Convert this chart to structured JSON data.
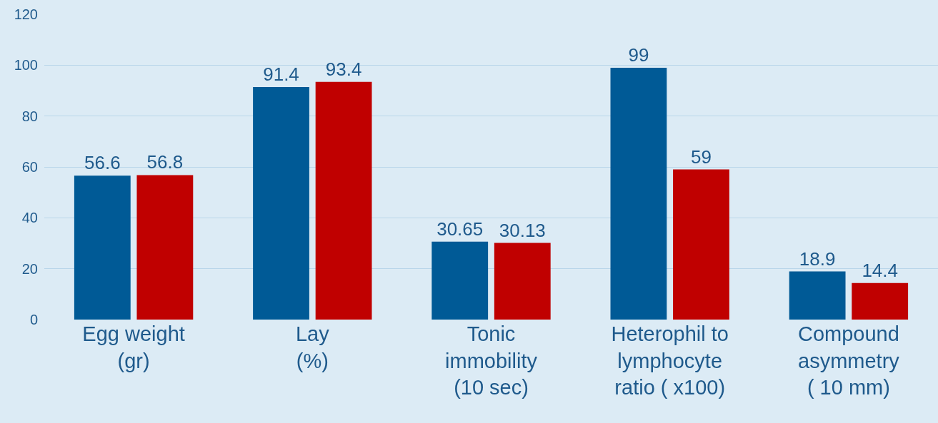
{
  "chart_data": {
    "type": "bar",
    "categories": [
      "Egg weight\n(gr)",
      "Lay\n(%)",
      "Tonic\nimmobility\n(10 sec)",
      "Heterophil to\nlymphocyte\nratio ( x100)",
      "Compound\nasymmetry\n( 10 mm)"
    ],
    "series": [
      {
        "color": "#005a96",
        "values": [
          56.6,
          91.4,
          30.65,
          99,
          18.9
        ]
      },
      {
        "color": "#c00000",
        "values": [
          56.8,
          93.4,
          30.13,
          59,
          14.4
        ]
      }
    ],
    "ylim": [
      0,
      120
    ],
    "yticks": [
      0,
      20,
      40,
      60,
      80,
      100,
      120
    ],
    "grid": "y",
    "data_labels": true
  }
}
